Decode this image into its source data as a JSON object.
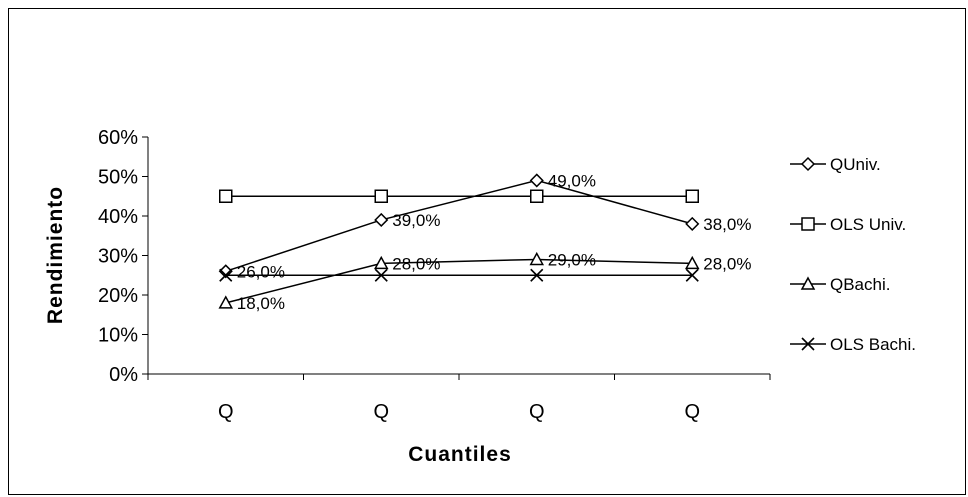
{
  "chart_data": {
    "type": "line",
    "xlabel": "Cuantiles",
    "ylabel": "Rendimiento",
    "categories": [
      "Q",
      "Q",
      "Q",
      "Q"
    ],
    "ylim": [
      0,
      0.6
    ],
    "yticks": [
      "0%",
      "10%",
      "20%",
      "30%",
      "40%",
      "50%",
      "60%"
    ],
    "grid": false,
    "legend_position": "right",
    "series": [
      {
        "name": "QUniv.",
        "marker": "diamond",
        "values": [
          0.26,
          0.39,
          0.49,
          0.38
        ],
        "labels": [
          "26,0%",
          "39,0%",
          "49,0%",
          "38,0%"
        ]
      },
      {
        "name": "OLS Univ.",
        "marker": "square",
        "values": [
          0.45,
          0.45,
          0.45,
          0.45
        ],
        "labels": [
          "",
          "",
          "",
          ""
        ]
      },
      {
        "name": "QBachi.",
        "marker": "triangle",
        "values": [
          0.18,
          0.28,
          0.29,
          0.28
        ],
        "labels": [
          "18,0%",
          "28,0%",
          "29,0%",
          "28,0%"
        ]
      },
      {
        "name": "OLS Bachi.",
        "marker": "x",
        "values": [
          0.25,
          0.25,
          0.25,
          0.25
        ],
        "labels": [
          "",
          "",
          "",
          ""
        ]
      }
    ]
  }
}
